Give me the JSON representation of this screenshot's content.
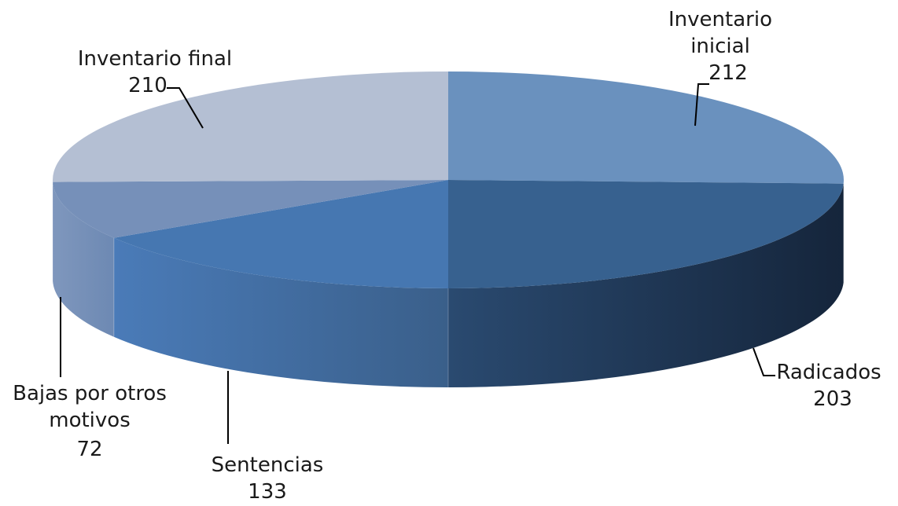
{
  "chart_data": {
    "type": "pie",
    "title": "",
    "slices": [
      {
        "label": "Inventario inicial",
        "value": 212,
        "color": "#6a91be"
      },
      {
        "label": "Radicados",
        "value": 203,
        "color": "#37618f"
      },
      {
        "label": "Sentencias",
        "value": 133,
        "color": "#4677b1"
      },
      {
        "label": "Bajas por otros motivos",
        "value": 72,
        "color": "#7690b9"
      },
      {
        "label": "Inventario final",
        "value": 210,
        "color": "#b4bfd3"
      }
    ],
    "labels": {
      "inventario_inicial": [
        "Inventario",
        "inicial",
        "212"
      ],
      "radicados": [
        "Radicados",
        "203"
      ],
      "sentencias": [
        "Sentencias",
        "133"
      ],
      "bajas": [
        "Bajas por otros",
        "motivos",
        "72"
      ],
      "inventario_final": [
        "Inventario final",
        "210"
      ]
    },
    "legend": "none",
    "grid": false
  }
}
